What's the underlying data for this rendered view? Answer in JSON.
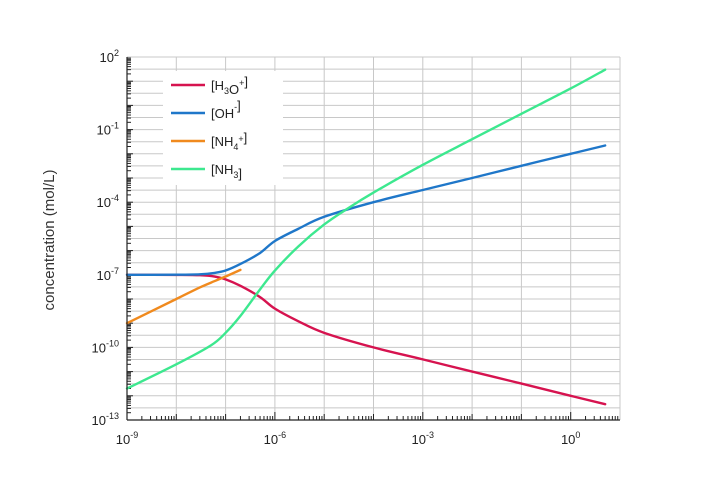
{
  "chart_data": {
    "type": "line",
    "title": "",
    "xlabel": "",
    "ylabel": "concentration (mol/L)",
    "x_scale": "log",
    "y_scale": "log",
    "xlim": [
      1e-09,
      10
    ],
    "ylim": [
      1e-13,
      100
    ],
    "x_ticks": [
      {
        "base": "10",
        "exp": "-9",
        "value": 1e-09
      },
      {
        "base": "10",
        "exp": "-6",
        "value": 1e-06
      },
      {
        "base": "10",
        "exp": "-3",
        "value": 0.001
      },
      {
        "base": "10",
        "exp": "0",
        "value": 1
      }
    ],
    "y_ticks": [
      {
        "base": "10",
        "exp": "2",
        "value": 100
      },
      {
        "base": "10",
        "exp": "-1",
        "value": 0.1
      },
      {
        "base": "10",
        "exp": "-4",
        "value": 0.0001
      },
      {
        "base": "10",
        "exp": "-7",
        "value": 1e-07
      },
      {
        "base": "10",
        "exp": "-10",
        "value": 1e-10
      },
      {
        "base": "10",
        "exp": "-13",
        "value": 1e-13
      }
    ],
    "grid": true,
    "legend_position": "top-left",
    "series": [
      {
        "name": "[H3O+]",
        "label": {
          "parts": [
            {
              "t": "[H"
            },
            {
              "t": "3",
              "sub": true
            },
            {
              "t": "O"
            },
            {
              "t": "+",
              "sup": true
            },
            {
              "t": "]"
            }
          ]
        },
        "color": "#d6134f",
        "x": [
          1e-09,
          1e-08,
          3e-08,
          6e-08,
          1e-07,
          2e-07,
          5e-07,
          1e-06,
          3e-06,
          1e-05,
          0.0001,
          0.001,
          0.01,
          0.1,
          1,
          5
        ],
        "y": [
          1e-07,
          9.9e-08,
          9.6e-08,
          8.5e-08,
          6.5e-08,
          3.5e-08,
          1.2e-08,
          4e-09,
          1.2e-09,
          4e-10,
          1e-10,
          3.2e-11,
          1e-11,
          3.2e-12,
          1e-12,
          4.5e-13
        ]
      },
      {
        "name": "[OH-]",
        "label": {
          "parts": [
            {
              "t": "[OH"
            },
            {
              "t": "-",
              "sup": true
            },
            {
              "t": "]"
            }
          ]
        },
        "color": "#1f77c9",
        "x": [
          1e-09,
          1e-08,
          3e-08,
          6e-08,
          1e-07,
          2e-07,
          5e-07,
          1e-06,
          3e-06,
          1e-05,
          0.0001,
          0.001,
          0.01,
          0.1,
          1,
          5
        ],
        "y": [
          1e-07,
          1.01e-07,
          1.05e-07,
          1.2e-07,
          1.5e-07,
          2.8e-07,
          8e-07,
          2.5e-06,
          8e-06,
          2.5e-05,
          0.0001,
          0.00032,
          0.001,
          0.0032,
          0.01,
          0.022
        ]
      },
      {
        "name": "[NH4+]",
        "label": {
          "parts": [
            {
              "t": "[NH"
            },
            {
              "t": "4",
              "sub": true
            },
            {
              "t": "+",
              "sup": true
            },
            {
              "t": "]"
            }
          ]
        },
        "color": "#f08a1e",
        "x": [
          1e-09,
          1e-08,
          3e-08,
          6e-08,
          1e-07,
          2e-07
        ],
        "y": [
          1e-09,
          1e-08,
          3e-08,
          5.5e-08,
          8.5e-08,
          1.6e-07
        ]
      },
      {
        "name": "[NH3]",
        "label": {
          "parts": [
            {
              "t": "[NH"
            },
            {
              "t": "3",
              "sub": true
            },
            {
              "t": "]"
            }
          ]
        },
        "color": "#3de88f",
        "x": [
          1e-09,
          1e-08,
          5e-08,
          1e-07,
          2e-07,
          5e-07,
          1e-06,
          3e-06,
          1e-05,
          3e-05,
          0.0001,
          0.001,
          0.01,
          0.1,
          1,
          5
        ],
        "y": [
          2e-12,
          2e-11,
          1.2e-10,
          4e-10,
          2e-09,
          2.5e-08,
          1.5e-07,
          1.5e-06,
          1.2e-05,
          5.5e-05,
          0.00025,
          0.0035,
          0.04,
          0.45,
          5,
          30
        ]
      }
    ]
  }
}
